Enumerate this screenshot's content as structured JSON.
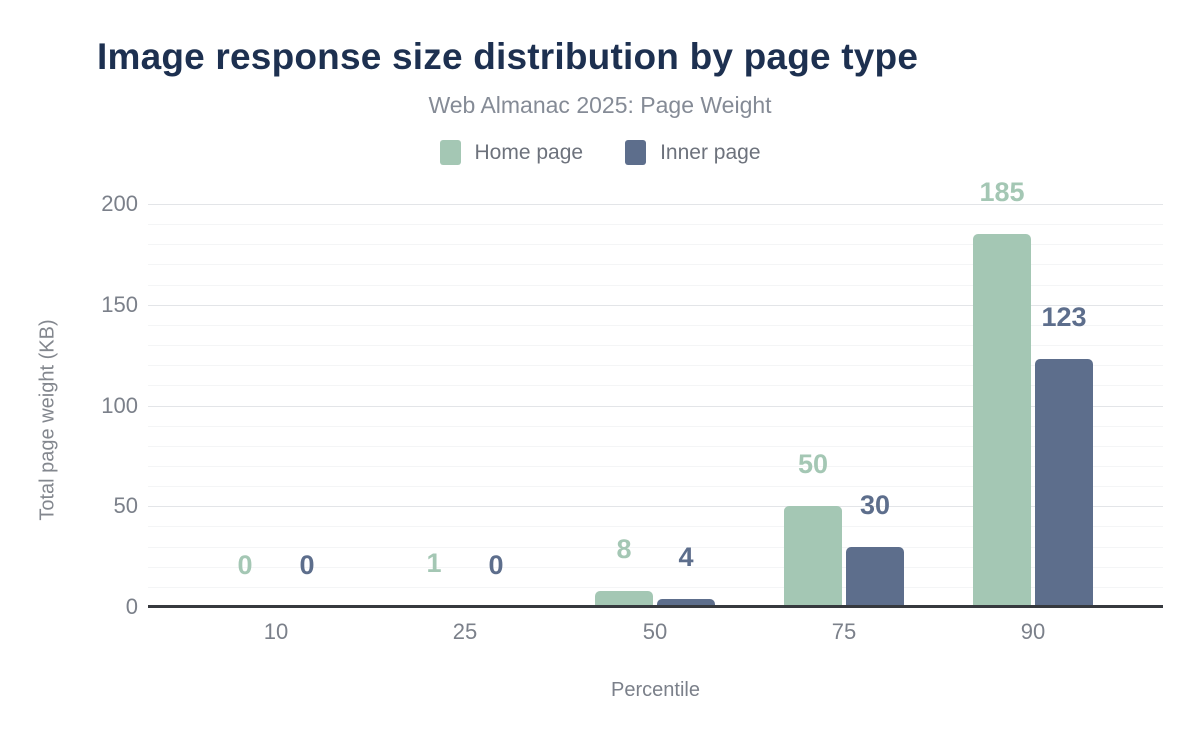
{
  "title": "Image response size distribution by page type",
  "subtitle": "Web Almanac 2025: Page Weight",
  "xlabel": "Percentile",
  "ylabel": "Total page weight (KB)",
  "colors": {
    "title": "#1d3050",
    "home_page": "#a4c7b4",
    "inner_page": "#5d6e8c",
    "axis_line": "#36393e",
    "tick_text": "#7b808a"
  },
  "chart_data": {
    "type": "bar",
    "title": "Image response size distribution by page type",
    "subtitle": "Web Almanac 2025: Page Weight",
    "categories": [
      "10",
      "25",
      "50",
      "75",
      "90"
    ],
    "series": [
      {
        "name": "Home page",
        "color": "#a4c7b4",
        "values": [
          0,
          1,
          8,
          50,
          185
        ]
      },
      {
        "name": "Inner page",
        "color": "#5d6e8c",
        "values": [
          0,
          0,
          4,
          30,
          123
        ]
      }
    ],
    "xlabel": "Percentile",
    "ylabel": "Total page weight (KB)",
    "ylim": [
      0,
      200
    ],
    "yticks": [
      0,
      50,
      100,
      150,
      200
    ],
    "grid": {
      "minor_step": 10,
      "major_step": 50
    },
    "legend_position": "top",
    "data_labels": true
  }
}
